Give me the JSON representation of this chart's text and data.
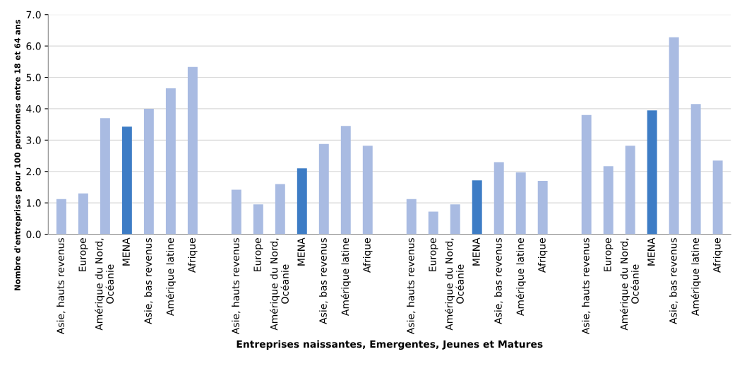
{
  "chart_data": {
    "type": "bar",
    "xlabel": "Entreprises naissantes, Emergentes, Jeunes et Matures",
    "ylabel": "Nombre d'entreprises pour 100 personnes entre 18 et 64 ans",
    "categories": [
      "Asie, hauts revenus",
      "Europe",
      "Amérique du Nord,\nOcéanie",
      "MENA",
      "Asie, bas revenus",
      "Amérique latine",
      "Afrique",
      null,
      "Asie, hauts revenus",
      "Europe",
      "Amérique du Nord,\nOcéanie",
      "MENA",
      "Asie, bas revenus",
      "Amérique latine",
      "Afrique",
      null,
      "Asie, hauts revenus",
      "Europe",
      "Amérique du Nord,\nOcéanie",
      "MENA",
      "Asie, bas revenus",
      "Amérique latine",
      "Afrique",
      null,
      "Asie, hauts revenus",
      "Europe",
      "Amérique du Nord,\nOcéanie",
      "MENA",
      "Asie, bas revenus",
      "Amérique latine",
      "Afrique"
    ],
    "values": [
      1.12,
      1.3,
      3.7,
      3.43,
      4.0,
      4.65,
      5.33,
      null,
      1.42,
      0.95,
      1.6,
      2.1,
      2.88,
      3.45,
      2.82,
      null,
      1.12,
      0.72,
      0.95,
      1.72,
      2.3,
      1.97,
      1.7,
      null,
      3.8,
      2.17,
      2.82,
      3.95,
      6.28,
      4.15,
      2.35
    ],
    "colors": [
      "#a9bbe2",
      "#a9bbe2",
      "#a9bbe2",
      "#3d7cc5",
      "#a9bbe2",
      "#a9bbe2",
      "#a9bbe2",
      "#a9bbe2",
      "#a9bbe2",
      "#a9bbe2",
      "#a9bbe2",
      "#3d7cc5",
      "#a9bbe2",
      "#a9bbe2",
      "#a9bbe2",
      "#a9bbe2",
      "#a9bbe2",
      "#a9bbe2",
      "#a9bbe2",
      "#3d7cc5",
      "#a9bbe2",
      "#a9bbe2",
      "#a9bbe2",
      "#a9bbe2",
      "#a9bbe2",
      "#a9bbe2",
      "#a9bbe2",
      "#3d7cc5",
      "#a9bbe2",
      "#a9bbe2",
      "#a9bbe2"
    ],
    "ylim": [
      0,
      7
    ],
    "yticks": [
      {
        "value": 0,
        "label": "0.0"
      },
      {
        "value": 1,
        "label": "1.0"
      },
      {
        "value": 2,
        "label": "2.0"
      },
      {
        "value": 3,
        "label": "3.0"
      },
      {
        "value": 4,
        "label": "4.0"
      },
      {
        "value": 5,
        "label": "5.0"
      },
      {
        "value": 6,
        "label": "6.0"
      },
      {
        "value": 7,
        "label": "7.0"
      }
    ],
    "grid": "y",
    "legend": false
  }
}
